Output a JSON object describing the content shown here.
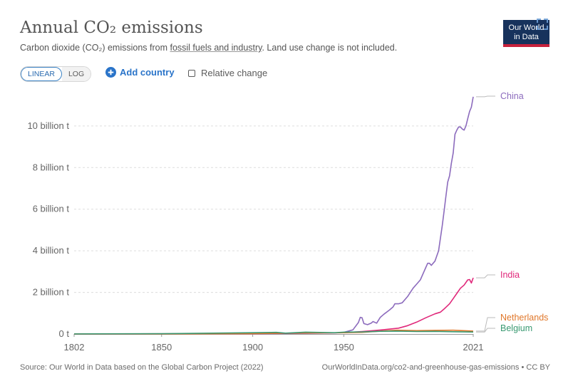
{
  "header": {
    "title": "Annual CO₂ emissions",
    "subtitle_pre": "Carbon dioxide (CO₂) emissions from ",
    "subtitle_link": "fossil fuels and industry",
    "subtitle_post": ". Land use change is not included.",
    "logo_line1": "Our World",
    "logo_line2": "in Data"
  },
  "controls": {
    "linear_label": "LINEAR",
    "log_label": "LOG",
    "add_country_label": "Add country",
    "relative_change_label": "Relative change"
  },
  "footer": {
    "source": "Source: Our World in Data based on the Global Carbon Project (2022)",
    "url": "OurWorldInData.org/co2-and-greenhouse-gas-emissions • CC BY"
  },
  "colors": {
    "China": "#8c6bbd",
    "India": "#e0287a",
    "Netherlands": "#e0772a",
    "Belgium": "#3a9a72"
  },
  "chart_data": {
    "type": "line",
    "title": "Annual CO₂ emissions",
    "xlabel": "",
    "ylabel": "",
    "xlim": [
      1802,
      2021
    ],
    "ylim": [
      0,
      11500000000
    ],
    "y_ticks": [
      {
        "value": 0,
        "label": "0 t"
      },
      {
        "value": 2000000000,
        "label": "2 billion t"
      },
      {
        "value": 4000000000,
        "label": "4 billion t"
      },
      {
        "value": 6000000000,
        "label": "6 billion t"
      },
      {
        "value": 8000000000,
        "label": "8 billion t"
      },
      {
        "value": 10000000000,
        "label": "10 billion t"
      }
    ],
    "x_ticks": [
      {
        "value": 1802,
        "label": "1802"
      },
      {
        "value": 1850,
        "label": "1850"
      },
      {
        "value": 1900,
        "label": "1900"
      },
      {
        "value": 1950,
        "label": "1950"
      },
      {
        "value": 2021,
        "label": "2021"
      }
    ],
    "series": [
      {
        "name": "China",
        "label_year_anchor": 2021,
        "points": [
          [
            1802,
            0
          ],
          [
            1900,
            10000000
          ],
          [
            1930,
            30000000
          ],
          [
            1945,
            50000000
          ],
          [
            1950,
            80000000
          ],
          [
            1955,
            200000000
          ],
          [
            1958,
            550000000
          ],
          [
            1959,
            800000000
          ],
          [
            1960,
            780000000
          ],
          [
            1961,
            500000000
          ],
          [
            1963,
            450000000
          ],
          [
            1965,
            520000000
          ],
          [
            1966,
            600000000
          ],
          [
            1968,
            520000000
          ],
          [
            1970,
            800000000
          ],
          [
            1972,
            950000000
          ],
          [
            1975,
            1150000000
          ],
          [
            1977,
            1300000000
          ],
          [
            1978,
            1450000000
          ],
          [
            1980,
            1450000000
          ],
          [
            1982,
            1500000000
          ],
          [
            1985,
            1800000000
          ],
          [
            1988,
            2200000000
          ],
          [
            1990,
            2400000000
          ],
          [
            1992,
            2600000000
          ],
          [
            1995,
            3200000000
          ],
          [
            1996,
            3400000000
          ],
          [
            1997,
            3400000000
          ],
          [
            1998,
            3300000000
          ],
          [
            1999,
            3400000000
          ],
          [
            2000,
            3500000000
          ],
          [
            2002,
            4000000000
          ],
          [
            2004,
            5200000000
          ],
          [
            2005,
            5900000000
          ],
          [
            2006,
            6600000000
          ],
          [
            2007,
            7300000000
          ],
          [
            2008,
            7600000000
          ],
          [
            2009,
            8200000000
          ],
          [
            2010,
            8700000000
          ],
          [
            2011,
            9600000000
          ],
          [
            2012,
            9800000000
          ],
          [
            2013,
            9950000000
          ],
          [
            2014,
            9950000000
          ],
          [
            2015,
            9850000000
          ],
          [
            2016,
            9800000000
          ],
          [
            2017,
            10000000000
          ],
          [
            2018,
            10350000000
          ],
          [
            2019,
            10700000000
          ],
          [
            2020,
            10900000000
          ],
          [
            2021,
            11400000000
          ]
        ]
      },
      {
        "name": "India",
        "label_year_anchor": 2021,
        "points": [
          [
            1802,
            0
          ],
          [
            1900,
            20000000
          ],
          [
            1950,
            60000000
          ],
          [
            1960,
            120000000
          ],
          [
            1970,
            190000000
          ],
          [
            1980,
            280000000
          ],
          [
            1985,
            400000000
          ],
          [
            1990,
            570000000
          ],
          [
            1995,
            780000000
          ],
          [
            2000,
            970000000
          ],
          [
            2003,
            1050000000
          ],
          [
            2005,
            1200000000
          ],
          [
            2008,
            1450000000
          ],
          [
            2010,
            1700000000
          ],
          [
            2012,
            1950000000
          ],
          [
            2014,
            2200000000
          ],
          [
            2016,
            2350000000
          ],
          [
            2018,
            2600000000
          ],
          [
            2019,
            2620000000
          ],
          [
            2020,
            2450000000
          ],
          [
            2021,
            2700000000
          ]
        ]
      },
      {
        "name": "Netherlands",
        "label_year_anchor": 2021,
        "points": [
          [
            1802,
            0
          ],
          [
            1850,
            5000000
          ],
          [
            1900,
            20000000
          ],
          [
            1920,
            40000000
          ],
          [
            1950,
            60000000
          ],
          [
            1960,
            80000000
          ],
          [
            1970,
            140000000
          ],
          [
            1979,
            180000000
          ],
          [
            1990,
            160000000
          ],
          [
            2000,
            175000000
          ],
          [
            2010,
            180000000
          ],
          [
            2021,
            140000000
          ]
        ]
      },
      {
        "name": "Belgium",
        "label_year_anchor": 2021,
        "points": [
          [
            1802,
            5000000
          ],
          [
            1850,
            15000000
          ],
          [
            1900,
            60000000
          ],
          [
            1913,
            80000000
          ],
          [
            1918,
            40000000
          ],
          [
            1929,
            90000000
          ],
          [
            1945,
            60000000
          ],
          [
            1950,
            90000000
          ],
          [
            1960,
            100000000
          ],
          [
            1970,
            130000000
          ],
          [
            1979,
            140000000
          ],
          [
            1990,
            120000000
          ],
          [
            2000,
            125000000
          ],
          [
            2010,
            110000000
          ],
          [
            2021,
            95000000
          ]
        ]
      }
    ],
    "legend": [
      {
        "name": "China",
        "text": "China"
      },
      {
        "name": "India",
        "text": "India"
      },
      {
        "name": "Netherlands",
        "text": "Netherlands"
      },
      {
        "name": "Belgium",
        "text": "Belgium"
      }
    ]
  }
}
